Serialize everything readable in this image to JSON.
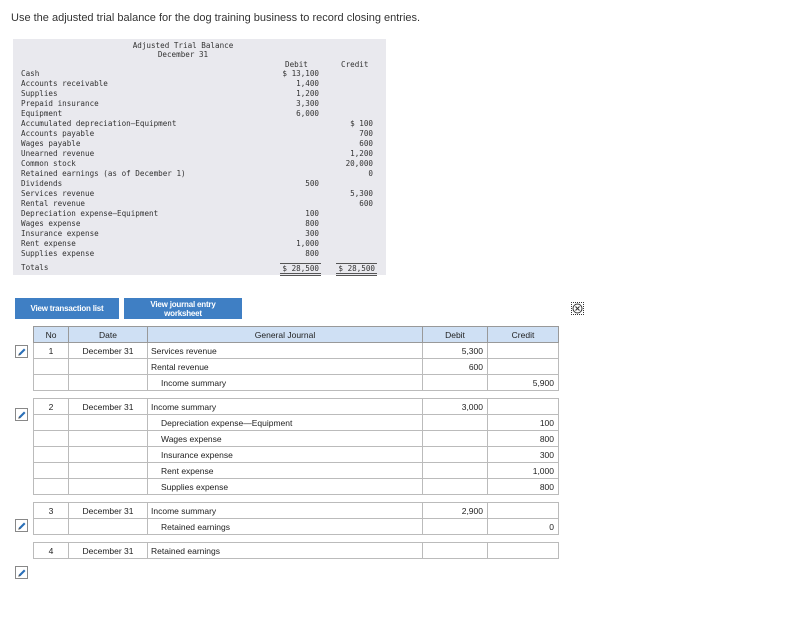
{
  "instruction": "Use the adjusted trial balance for the dog training business to record closing entries.",
  "trial_balance": {
    "title": "Adjusted Trial Balance",
    "date": "December 31",
    "debit_header": "Debit",
    "credit_header": "Credit",
    "rows": [
      {
        "account": "Cash",
        "debit": "$ 13,100",
        "credit": ""
      },
      {
        "account": "Accounts receivable",
        "debit": "1,400",
        "credit": ""
      },
      {
        "account": "Supplies",
        "debit": "1,200",
        "credit": ""
      },
      {
        "account": "Prepaid insurance",
        "debit": "3,300",
        "credit": ""
      },
      {
        "account": "Equipment",
        "debit": "6,000",
        "credit": ""
      },
      {
        "account": "Accumulated depreciation—Equipment",
        "debit": "",
        "credit": "$ 100"
      },
      {
        "account": "Accounts payable",
        "debit": "",
        "credit": "700"
      },
      {
        "account": "Wages payable",
        "debit": "",
        "credit": "600"
      },
      {
        "account": "Unearned revenue",
        "debit": "",
        "credit": "1,200"
      },
      {
        "account": "Common stock",
        "debit": "",
        "credit": "20,000"
      },
      {
        "account": "Retained earnings (as of December 1)",
        "debit": "",
        "credit": "0"
      },
      {
        "account": "Dividends",
        "debit": "500",
        "credit": ""
      },
      {
        "account": "Services revenue",
        "debit": "",
        "credit": "5,300"
      },
      {
        "account": "Rental revenue",
        "debit": "",
        "credit": "600"
      },
      {
        "account": "Depreciation expense—Equipment",
        "debit": "100",
        "credit": ""
      },
      {
        "account": "Wages expense",
        "debit": "800",
        "credit": ""
      },
      {
        "account": "Insurance expense",
        "debit": "300",
        "credit": ""
      },
      {
        "account": "Rent expense",
        "debit": "1,000",
        "credit": ""
      },
      {
        "account": "Supplies expense",
        "debit": "800",
        "credit": ""
      }
    ],
    "totals_label": "Totals",
    "total_debit": "$ 28,500",
    "total_credit": "$ 28,500"
  },
  "buttons": {
    "view_transaction_list": "View transaction list",
    "view_journal_entry_worksheet": "View journal entry worksheet"
  },
  "journal": {
    "headers": {
      "no": "No",
      "date": "Date",
      "general_journal": "General Journal",
      "debit": "Debit",
      "credit": "Credit"
    },
    "entries": [
      {
        "no": "1",
        "date": "December 31",
        "lines": [
          {
            "account": "Services revenue",
            "indent": false,
            "debit": "5,300",
            "credit": ""
          },
          {
            "account": "Rental revenue",
            "indent": false,
            "debit": "600",
            "credit": ""
          },
          {
            "account": "Income summary",
            "indent": true,
            "debit": "",
            "credit": "5,900"
          }
        ]
      },
      {
        "no": "2",
        "date": "December 31",
        "lines": [
          {
            "account": "Income summary",
            "indent": false,
            "debit": "3,000",
            "credit": ""
          },
          {
            "account": "Depreciation expense—Equipment",
            "indent": true,
            "debit": "",
            "credit": "100"
          },
          {
            "account": "Wages expense",
            "indent": true,
            "debit": "",
            "credit": "800"
          },
          {
            "account": "Insurance expense",
            "indent": true,
            "debit": "",
            "credit": "300"
          },
          {
            "account": "Rent expense",
            "indent": true,
            "debit": "",
            "credit": "1,000"
          },
          {
            "account": "Supplies expense",
            "indent": true,
            "debit": "",
            "credit": "800"
          }
        ]
      },
      {
        "no": "3",
        "date": "December 31",
        "lines": [
          {
            "account": "Income summary",
            "indent": false,
            "debit": "2,900",
            "credit": ""
          },
          {
            "account": "Retained earnings",
            "indent": true,
            "debit": "",
            "credit": "0"
          }
        ]
      },
      {
        "no": "4",
        "date": "December 31",
        "lines": [
          {
            "account": "Retained earnings",
            "indent": false,
            "debit": "",
            "credit": ""
          }
        ]
      }
    ]
  },
  "icons": {
    "edit": "pencil-icon",
    "close": "close-icon"
  }
}
